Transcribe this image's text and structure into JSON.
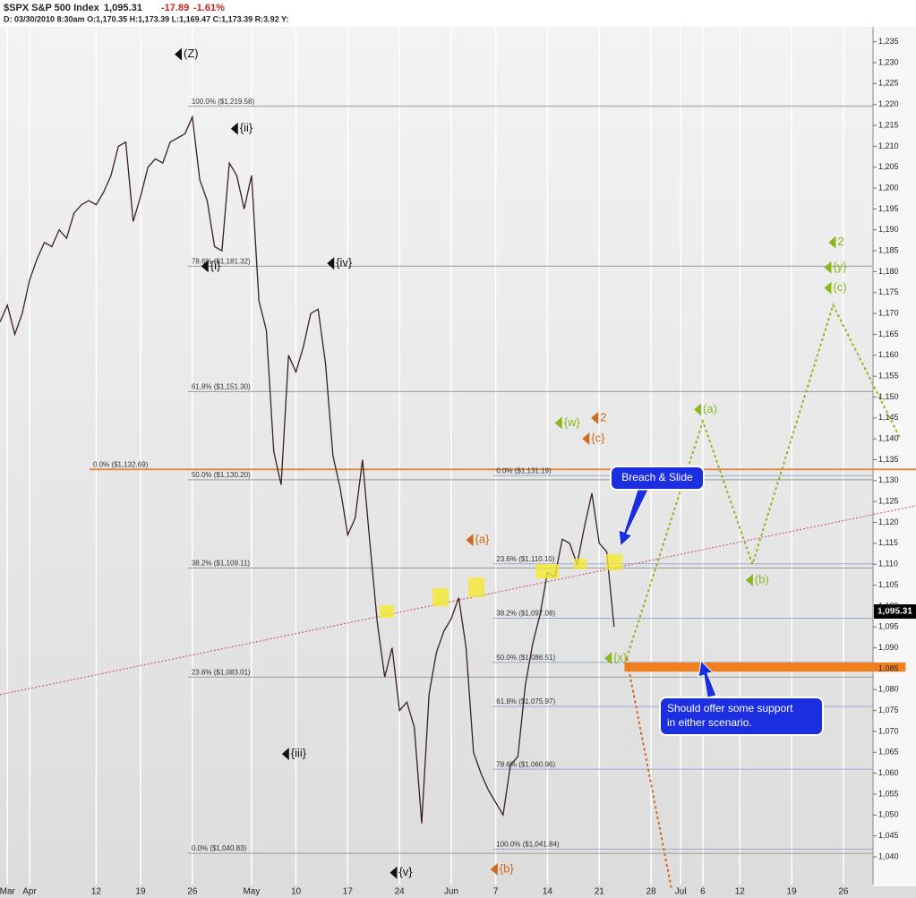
{
  "chart_data": {
    "type": "line",
    "symbol": "$SPX S&P 500 Index",
    "last": "1,095.31",
    "change": "-17.89",
    "change_pct": "-1.61%",
    "details": "D: 03/30/2010 8:30am O:1,170.35 H:1,173.39 L:1,169.47 C:1,173.39 R:3.92 Y:",
    "xlim": [
      0,
      118
    ],
    "ylim": [
      1034,
      1245
    ],
    "xticks": [
      {
        "value": 1,
        "label": "Mar"
      },
      {
        "value": 4,
        "label": "Apr"
      },
      {
        "value": 13,
        "label": "12"
      },
      {
        "value": 19,
        "label": "19"
      },
      {
        "value": 26,
        "label": "26"
      },
      {
        "value": 34,
        "label": "May"
      },
      {
        "value": 40,
        "label": "10"
      },
      {
        "value": 47,
        "label": "17"
      },
      {
        "value": 54,
        "label": "24"
      },
      {
        "value": 61,
        "label": "Jun"
      },
      {
        "value": 67,
        "label": "7"
      },
      {
        "value": 74,
        "label": "14"
      },
      {
        "value": 81,
        "label": "21"
      },
      {
        "value": 88,
        "label": "28"
      },
      {
        "value": 92,
        "label": "Jul"
      },
      {
        "value": 95,
        "label": "6"
      },
      {
        "value": 100,
        "label": "12"
      },
      {
        "value": 107,
        "label": "19"
      },
      {
        "value": 114,
        "label": "26"
      }
    ],
    "yticks": [
      {
        "value": 1040,
        "label": "1,040"
      },
      {
        "value": 1045,
        "label": "1,045"
      },
      {
        "value": 1050,
        "label": "1,050"
      },
      {
        "value": 1055,
        "label": "1,055"
      },
      {
        "value": 1060,
        "label": "1,060"
      },
      {
        "value": 1065,
        "label": "1,065"
      },
      {
        "value": 1070,
        "label": "1,070"
      },
      {
        "value": 1075,
        "label": "1,075"
      },
      {
        "value": 1080,
        "label": "1,080"
      },
      {
        "value": 1085,
        "label": "1,085"
      },
      {
        "value": 1090,
        "label": "1,090"
      },
      {
        "value": 1095,
        "label": "1,095"
      },
      {
        "value": 1100,
        "label": "1,100"
      },
      {
        "value": 1105,
        "label": "1,105"
      },
      {
        "value": 1110,
        "label": "1,110"
      },
      {
        "value": 1115,
        "label": "1,115"
      },
      {
        "value": 1120,
        "label": "1,120"
      },
      {
        "value": 1125,
        "label": "1,125"
      },
      {
        "value": 1130,
        "label": "1,130"
      },
      {
        "value": 1135,
        "label": "1,135"
      },
      {
        "value": 1140,
        "label": "1,140"
      },
      {
        "value": 1145,
        "label": "1,145"
      },
      {
        "value": 1150,
        "label": "1,150"
      },
      {
        "value": 1155,
        "label": "1,155"
      },
      {
        "value": 1160,
        "label": "1,160"
      },
      {
        "value": 1165,
        "label": "1,165"
      },
      {
        "value": 1170,
        "label": "1,170"
      },
      {
        "value": 1175,
        "label": "1,175"
      },
      {
        "value": 1180,
        "label": "1,180"
      },
      {
        "value": 1185,
        "label": "1,185"
      },
      {
        "value": 1190,
        "label": "1,190"
      },
      {
        "value": 1195,
        "label": "1,195"
      },
      {
        "value": 1200,
        "label": "1,200"
      },
      {
        "value": 1205,
        "label": "1,205"
      },
      {
        "value": 1210,
        "label": "1,210"
      },
      {
        "value": 1215,
        "label": "1,215"
      },
      {
        "value": 1220,
        "label": "1,220"
      },
      {
        "value": 1225,
        "label": "1,225"
      },
      {
        "value": 1230,
        "label": "1,230"
      },
      {
        "value": 1235,
        "label": "1,235"
      }
    ],
    "series": [
      {
        "name": "$SPX",
        "color": "#3a2020",
        "x": [
          0,
          1,
          2,
          3,
          4,
          5,
          6,
          7,
          8,
          9,
          10,
          11,
          12,
          13,
          14,
          15,
          16,
          17,
          18,
          19,
          20,
          21,
          22,
          23,
          24,
          25,
          26,
          27,
          28,
          29,
          30,
          31,
          32,
          33,
          34,
          35,
          36,
          37,
          38,
          39,
          40,
          41,
          42,
          43,
          44,
          45,
          46,
          47,
          48,
          49,
          50,
          51,
          52,
          53,
          54,
          55,
          56,
          57,
          58,
          59,
          60,
          61,
          62,
          63,
          64,
          65,
          66,
          67,
          68,
          69,
          70,
          71,
          72,
          73,
          74,
          75,
          76,
          77,
          78,
          79,
          80,
          81,
          82,
          83
        ],
        "values": [
          1168,
          1172,
          1165,
          1170,
          1178,
          1183,
          1187,
          1186,
          1190,
          1188,
          1194,
          1196,
          1197,
          1196,
          1199,
          1203,
          1210,
          1211,
          1192,
          1198,
          1205,
          1207,
          1206,
          1211,
          1212,
          1213,
          1217,
          1202,
          1197,
          1186,
          1185,
          1206,
          1203,
          1195,
          1203,
          1173,
          1166,
          1137,
          1129,
          1160,
          1156,
          1162,
          1170,
          1171,
          1158,
          1136,
          1128,
          1117,
          1121,
          1135,
          1115,
          1096,
          1083,
          1090,
          1075,
          1077,
          1071,
          1048,
          1079,
          1089,
          1094,
          1097,
          1102,
          1090,
          1065,
          1060,
          1056,
          1053,
          1050,
          1062,
          1064,
          1081,
          1091,
          1098,
          1108,
          1107,
          1116,
          1115,
          1110,
          1119,
          1127,
          1115,
          1113,
          1095
        ]
      },
      {
        "color": "#8ab81e",
        "x": [
          84.7,
          95,
          101.7,
          112.6,
          121.7
        ],
        "values": [
          1087.5,
          1144.2,
          1110,
          1172,
          1140
        ]
      },
      {
        "color": "#d2691e",
        "x": [
          84.7,
          90.8
        ],
        "values": [
          1087.5,
          1032
        ]
      }
    ],
    "trendline": {
      "color": "#d06080",
      "x": [
        0,
        123.8
      ],
      "values": [
        1078.8,
        1124
      ]
    },
    "support_band": {
      "color": "#f08020",
      "x": [
        84.4,
        122.4
      ],
      "values": [
        1084.3,
        1086.5
      ]
    },
    "fib_levels": [
      {
        "label": "100.0% ($1,219.58)",
        "value": 1219.58,
        "start": 25.4,
        "color": "#999"
      },
      {
        "label": "78.6% ($1,181.32)",
        "value": 1181.32,
        "start": 25.4,
        "color": "#999"
      },
      {
        "label": "61.8% ($1,151.30)",
        "value": 1151.3,
        "start": 25.4,
        "color": "#999"
      },
      {
        "label": "50.0% ($1,130.20)",
        "value": 1130.2,
        "start": 25.4,
        "color": "#999"
      },
      {
        "label": "38.2% ($1,109.11)",
        "value": 1109.11,
        "start": 25.4,
        "color": "#999"
      },
      {
        "label": "23.6% ($1,083.01)",
        "value": 1083.01,
        "start": 25.4,
        "color": "#999"
      },
      {
        "label": "0.0% ($1,040.83)",
        "value": 1040.83,
        "start": 25.4,
        "color": "#999"
      },
      {
        "label": "0.0% ($1,132.69)",
        "value": 1132.69,
        "start": 12.1,
        "color": "#e08a4a"
      },
      {
        "label": "0.0% ($1,131.19)",
        "value": 1131.19,
        "start": 66.6,
        "color": "#99a8d0"
      },
      {
        "label": "23.6% ($1,110.10)",
        "value": 1110.1,
        "start": 66.6,
        "color": "#99a8d0"
      },
      {
        "label": "38.2% ($1,097.08)",
        "value": 1097.08,
        "start": 66.6,
        "color": "#99a8d0"
      },
      {
        "label": "50.0% ($1,086.51)",
        "value": 1086.51,
        "start": 66.6,
        "color": "#99a8d0"
      },
      {
        "label": "61.8% ($1,075.97)",
        "value": 1075.97,
        "start": 66.6,
        "color": "#99a8d0"
      },
      {
        "label": "78.6% ($1,060.96)",
        "value": 1060.96,
        "start": 66.6,
        "color": "#99a8d0"
      },
      {
        "label": "100.0% ($1,041.84)",
        "value": 1041.84,
        "start": 66.6,
        "color": "#99a8d0"
      }
    ],
    "annotations": [
      {
        "text": "(Z)",
        "x": 23.6,
        "y": 1232.0,
        "color": "#111"
      },
      {
        "text": "{ii}",
        "x": 31.2,
        "y": 1214.2,
        "color": "#111"
      },
      {
        "text": "{i}",
        "x": 27.2,
        "y": 1181.3,
        "color": "#111"
      },
      {
        "text": "{iv}",
        "x": 44.2,
        "y": 1182,
        "color": "#111"
      },
      {
        "text": "{iii}",
        "x": 38.1,
        "y": 1064.6,
        "color": "#111"
      },
      {
        "text": "{v}",
        "x": 52.7,
        "y": 1036.2,
        "color": "#111"
      },
      {
        "text": "{a}",
        "x": 63,
        "y": 1115.8,
        "color": "#d2691e"
      },
      {
        "text": "{b}",
        "x": 66.3,
        "y": 1037,
        "color": "#d2691e"
      },
      {
        "text": "{w}",
        "x": 75,
        "y": 1143.8,
        "color": "#8ab81e"
      },
      {
        "text": "2",
        "x": 79.9,
        "y": 1145,
        "color": "#d2691e"
      },
      {
        "text": "{c}",
        "x": 78.7,
        "y": 1140,
        "color": "#d2691e"
      },
      {
        "text": "(a)",
        "x": 93.8,
        "y": 1147,
        "color": "#8ab81e"
      },
      {
        "text": "(b)",
        "x": 100.8,
        "y": 1106.2,
        "color": "#8ab81e"
      },
      {
        "text": "{x}",
        "x": 81.7,
        "y": 1087.5,
        "color": "#8ab81e"
      },
      {
        "text": "2",
        "x": 112,
        "y": 1187,
        "color": "#8ab81e"
      },
      {
        "text": "{y}",
        "x": 111.4,
        "y": 1181,
        "color": "#8ab81e"
      },
      {
        "text": "(c)",
        "x": 111.4,
        "y": 1176.1,
        "color": "#8ab81e"
      }
    ],
    "callouts": {
      "breach": "Breach & Slide",
      "support": [
        "Should offer some support",
        "in either scenario."
      ]
    }
  }
}
